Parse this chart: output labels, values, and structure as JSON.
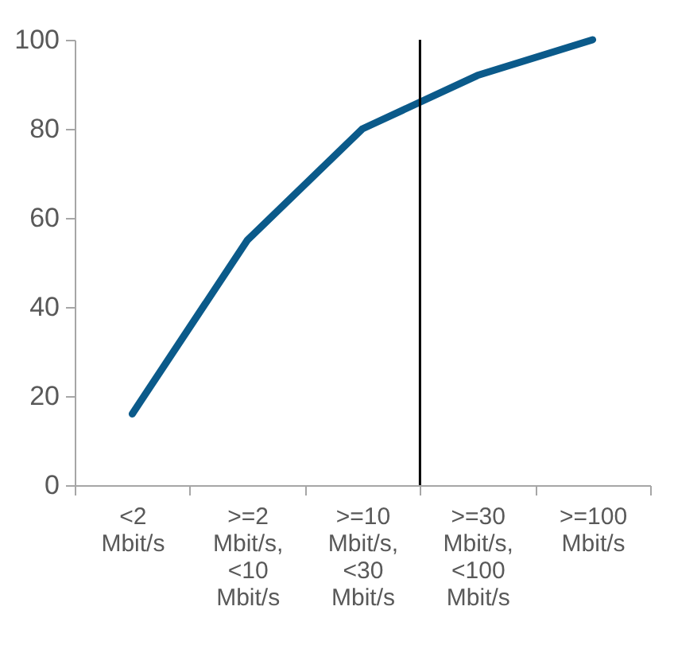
{
  "chart_data": {
    "type": "line",
    "categories": [
      "<2 Mbit/s",
      ">=2 Mbit/s, <10 Mbit/s",
      ">=10 Mbit/s, <30 Mbit/s",
      ">=30 Mbit/s, <100 Mbit/s",
      ">=100 Mbit/s"
    ],
    "series": [
      {
        "color": "#0b5a8a",
        "values": [
          16,
          55,
          80,
          92,
          100
        ]
      }
    ],
    "ylim": [
      0,
      100
    ],
    "yticks": [
      0,
      20,
      40,
      60,
      80,
      100
    ],
    "grid": false,
    "marker": "none",
    "line_style": "solid"
  }
}
